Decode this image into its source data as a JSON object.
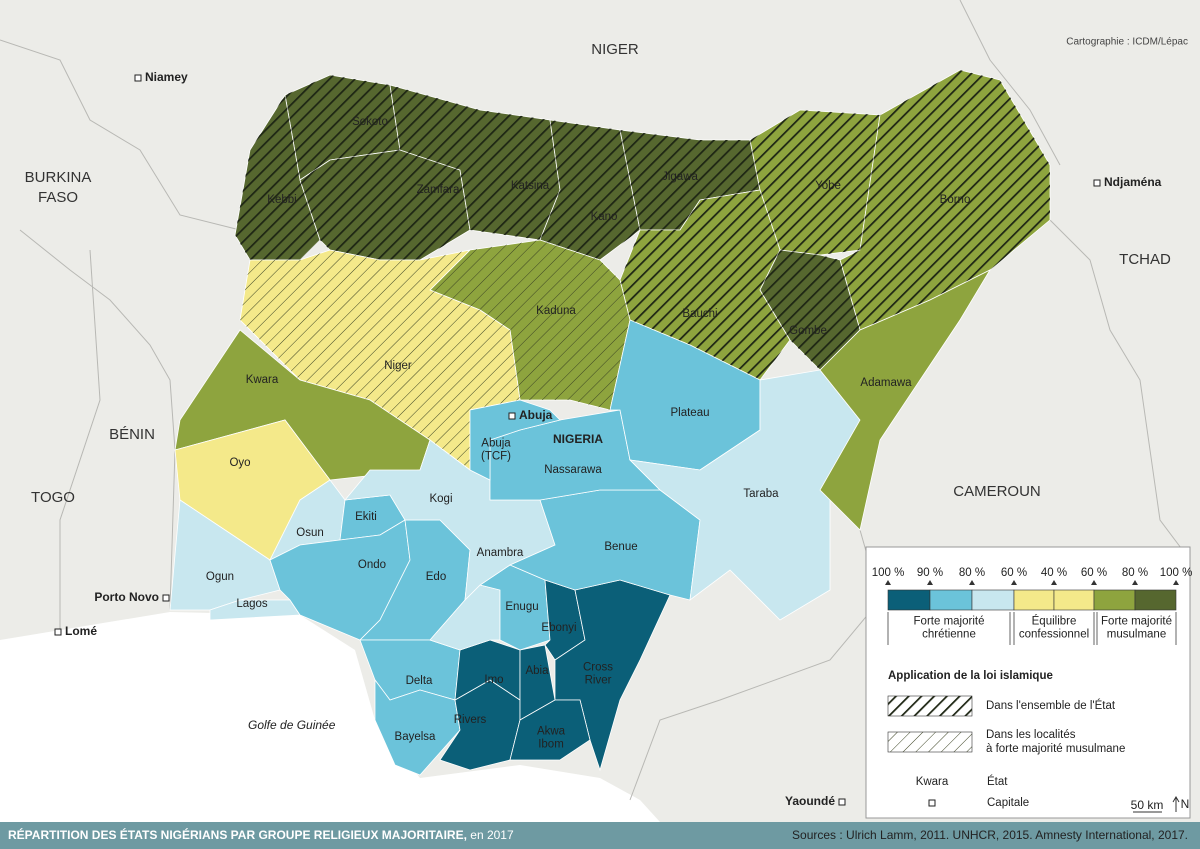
{
  "credit": "Cartographie : ICDM/Lépac",
  "sea": "Golfe de Guinée",
  "countries": [
    {
      "lines": [
        "NIGER"
      ]
    },
    {
      "lines": [
        "BURKINA",
        "FASO"
      ]
    },
    {
      "lines": [
        "TCHAD"
      ]
    },
    {
      "lines": [
        "BÉNIN"
      ]
    },
    {
      "lines": [
        "TOGO"
      ]
    },
    {
      "lines": [
        "CAMEROUN"
      ]
    },
    {
      "lines": [
        "NIGERIA"
      ]
    }
  ],
  "capitals": [
    "Niamey",
    "Ndjaména",
    "Porto Novo",
    "Lomé",
    "Yaoundé",
    "Abuja"
  ],
  "states": [
    {
      "name": [
        "Sokoto"
      ],
      "color": "#56672f",
      "hatch": "dense"
    },
    {
      "name": [
        "Kebbi"
      ],
      "color": "#56672f",
      "hatch": "dense"
    },
    {
      "name": [
        "Zamfara"
      ],
      "color": "#56672f",
      "hatch": "dense"
    },
    {
      "name": [
        "Katsina"
      ],
      "color": "#56672f",
      "hatch": "dense"
    },
    {
      "name": [
        "Kano"
      ],
      "color": "#56672f",
      "hatch": "dense"
    },
    {
      "name": [
        "Jigawa"
      ],
      "color": "#56672f",
      "hatch": "dense"
    },
    {
      "name": [
        "Yobe"
      ],
      "color": "#8ea43e",
      "hatch": "dense"
    },
    {
      "name": [
        "Borno"
      ],
      "color": "#8ea43e",
      "hatch": "dense"
    },
    {
      "name": [
        "Bauchi"
      ],
      "color": "#8ea43e",
      "hatch": "dense"
    },
    {
      "name": [
        "Gombe"
      ],
      "color": "#56672f",
      "hatch": "dense"
    },
    {
      "name": [
        "Kaduna"
      ],
      "color": "#8ea43e",
      "hatch": "light"
    },
    {
      "name": [
        "Niger"
      ],
      "color": "#f4e98a",
      "hatch": "light"
    },
    {
      "name": [
        "Kwara"
      ],
      "color": "#8ea43e"
    },
    {
      "name": [
        "Oyo"
      ],
      "color": "#f4e98a"
    },
    {
      "name": [
        "Ogun"
      ],
      "color": "#c8e7ef"
    },
    {
      "name": [
        "Lagos"
      ],
      "color": "#c8e7ef"
    },
    {
      "name": [
        "Osun"
      ],
      "color": "#c8e7ef"
    },
    {
      "name": [
        "Ekiti"
      ],
      "color": "#6bc3da"
    },
    {
      "name": [
        "Ondo"
      ],
      "color": "#6bc3da"
    },
    {
      "name": [
        "Edo"
      ],
      "color": "#6bc3da"
    },
    {
      "name": [
        "Delta"
      ],
      "color": "#6bc3da"
    },
    {
      "name": [
        "Bayelsa"
      ],
      "color": "#6bc3da"
    },
    {
      "name": [
        "Rivers"
      ],
      "color": "#0b5f78"
    },
    {
      "name": [
        "Imo"
      ],
      "color": "#0b5f78"
    },
    {
      "name": [
        "Abia"
      ],
      "color": "#0b5f78"
    },
    {
      "name": [
        "Anambra"
      ],
      "color": "#c8e7ef"
    },
    {
      "name": [
        "Enugu"
      ],
      "color": "#6bc3da"
    },
    {
      "name": [
        "Ebonyi"
      ],
      "color": "#0b5f78"
    },
    {
      "name": [
        "Cross",
        "River"
      ],
      "color": "#0b5f78"
    },
    {
      "name": [
        "Akwa",
        "Ibom"
      ],
      "color": "#0b5f78"
    },
    {
      "name": [
        "Kogi"
      ],
      "color": "#c8e7ef"
    },
    {
      "name": [
        "Benue"
      ],
      "color": "#6bc3da"
    },
    {
      "name": [
        "Nassarawa"
      ],
      "color": "#6bc3da"
    },
    {
      "name": [
        "Abuja",
        "(TCF)"
      ],
      "color": "#6bc3da"
    },
    {
      "name": [
        "Plateau"
      ],
      "color": "#6bc3da"
    },
    {
      "name": [
        "Taraba"
      ],
      "color": "#c8e7ef"
    },
    {
      "name": [
        "Adamawa"
      ],
      "color": "#8ea43e"
    }
  ],
  "legend": {
    "scale_labels": [
      "100 %",
      "90 %",
      "80 %",
      "60 %",
      "40 %",
      "60 %",
      "80 %",
      "100 %"
    ],
    "colors": [
      "#0b5f78",
      "#6bc3da",
      "#c8e7ef",
      "#f4e98a",
      "#f4e98a",
      "#8ea43e",
      "#56672f"
    ],
    "groups": [
      {
        "lines": [
          "Forte majorité",
          "chrétienne"
        ]
      },
      {
        "lines": [
          "Équilibre",
          "confessionnel"
        ]
      },
      {
        "lines": [
          "Forte majorité",
          "musulmane"
        ]
      }
    ],
    "law_title": "Application de la loi islamique",
    "law_items": [
      {
        "lines": [
          "Dans l'ensemble de l'État"
        ],
        "hatch": "dense"
      },
      {
        "lines": [
          "Dans les localités",
          "à forte majorité musulmane"
        ],
        "hatch": "light"
      }
    ],
    "state_example": "Kwara",
    "state_text": "État",
    "capital_text": "Capitale",
    "scale": "50 km",
    "north": "N"
  },
  "footer": {
    "title": "RÉPARTITION DES ÉTATS NIGÉRIANS PAR GROUPE RELIGIEUX MAJORITAIRE,",
    "title_suffix": "en 2017",
    "sources": "Sources : Ulrich Lamm, 2011. UNHCR, 2015. Amnesty International, 2017."
  }
}
